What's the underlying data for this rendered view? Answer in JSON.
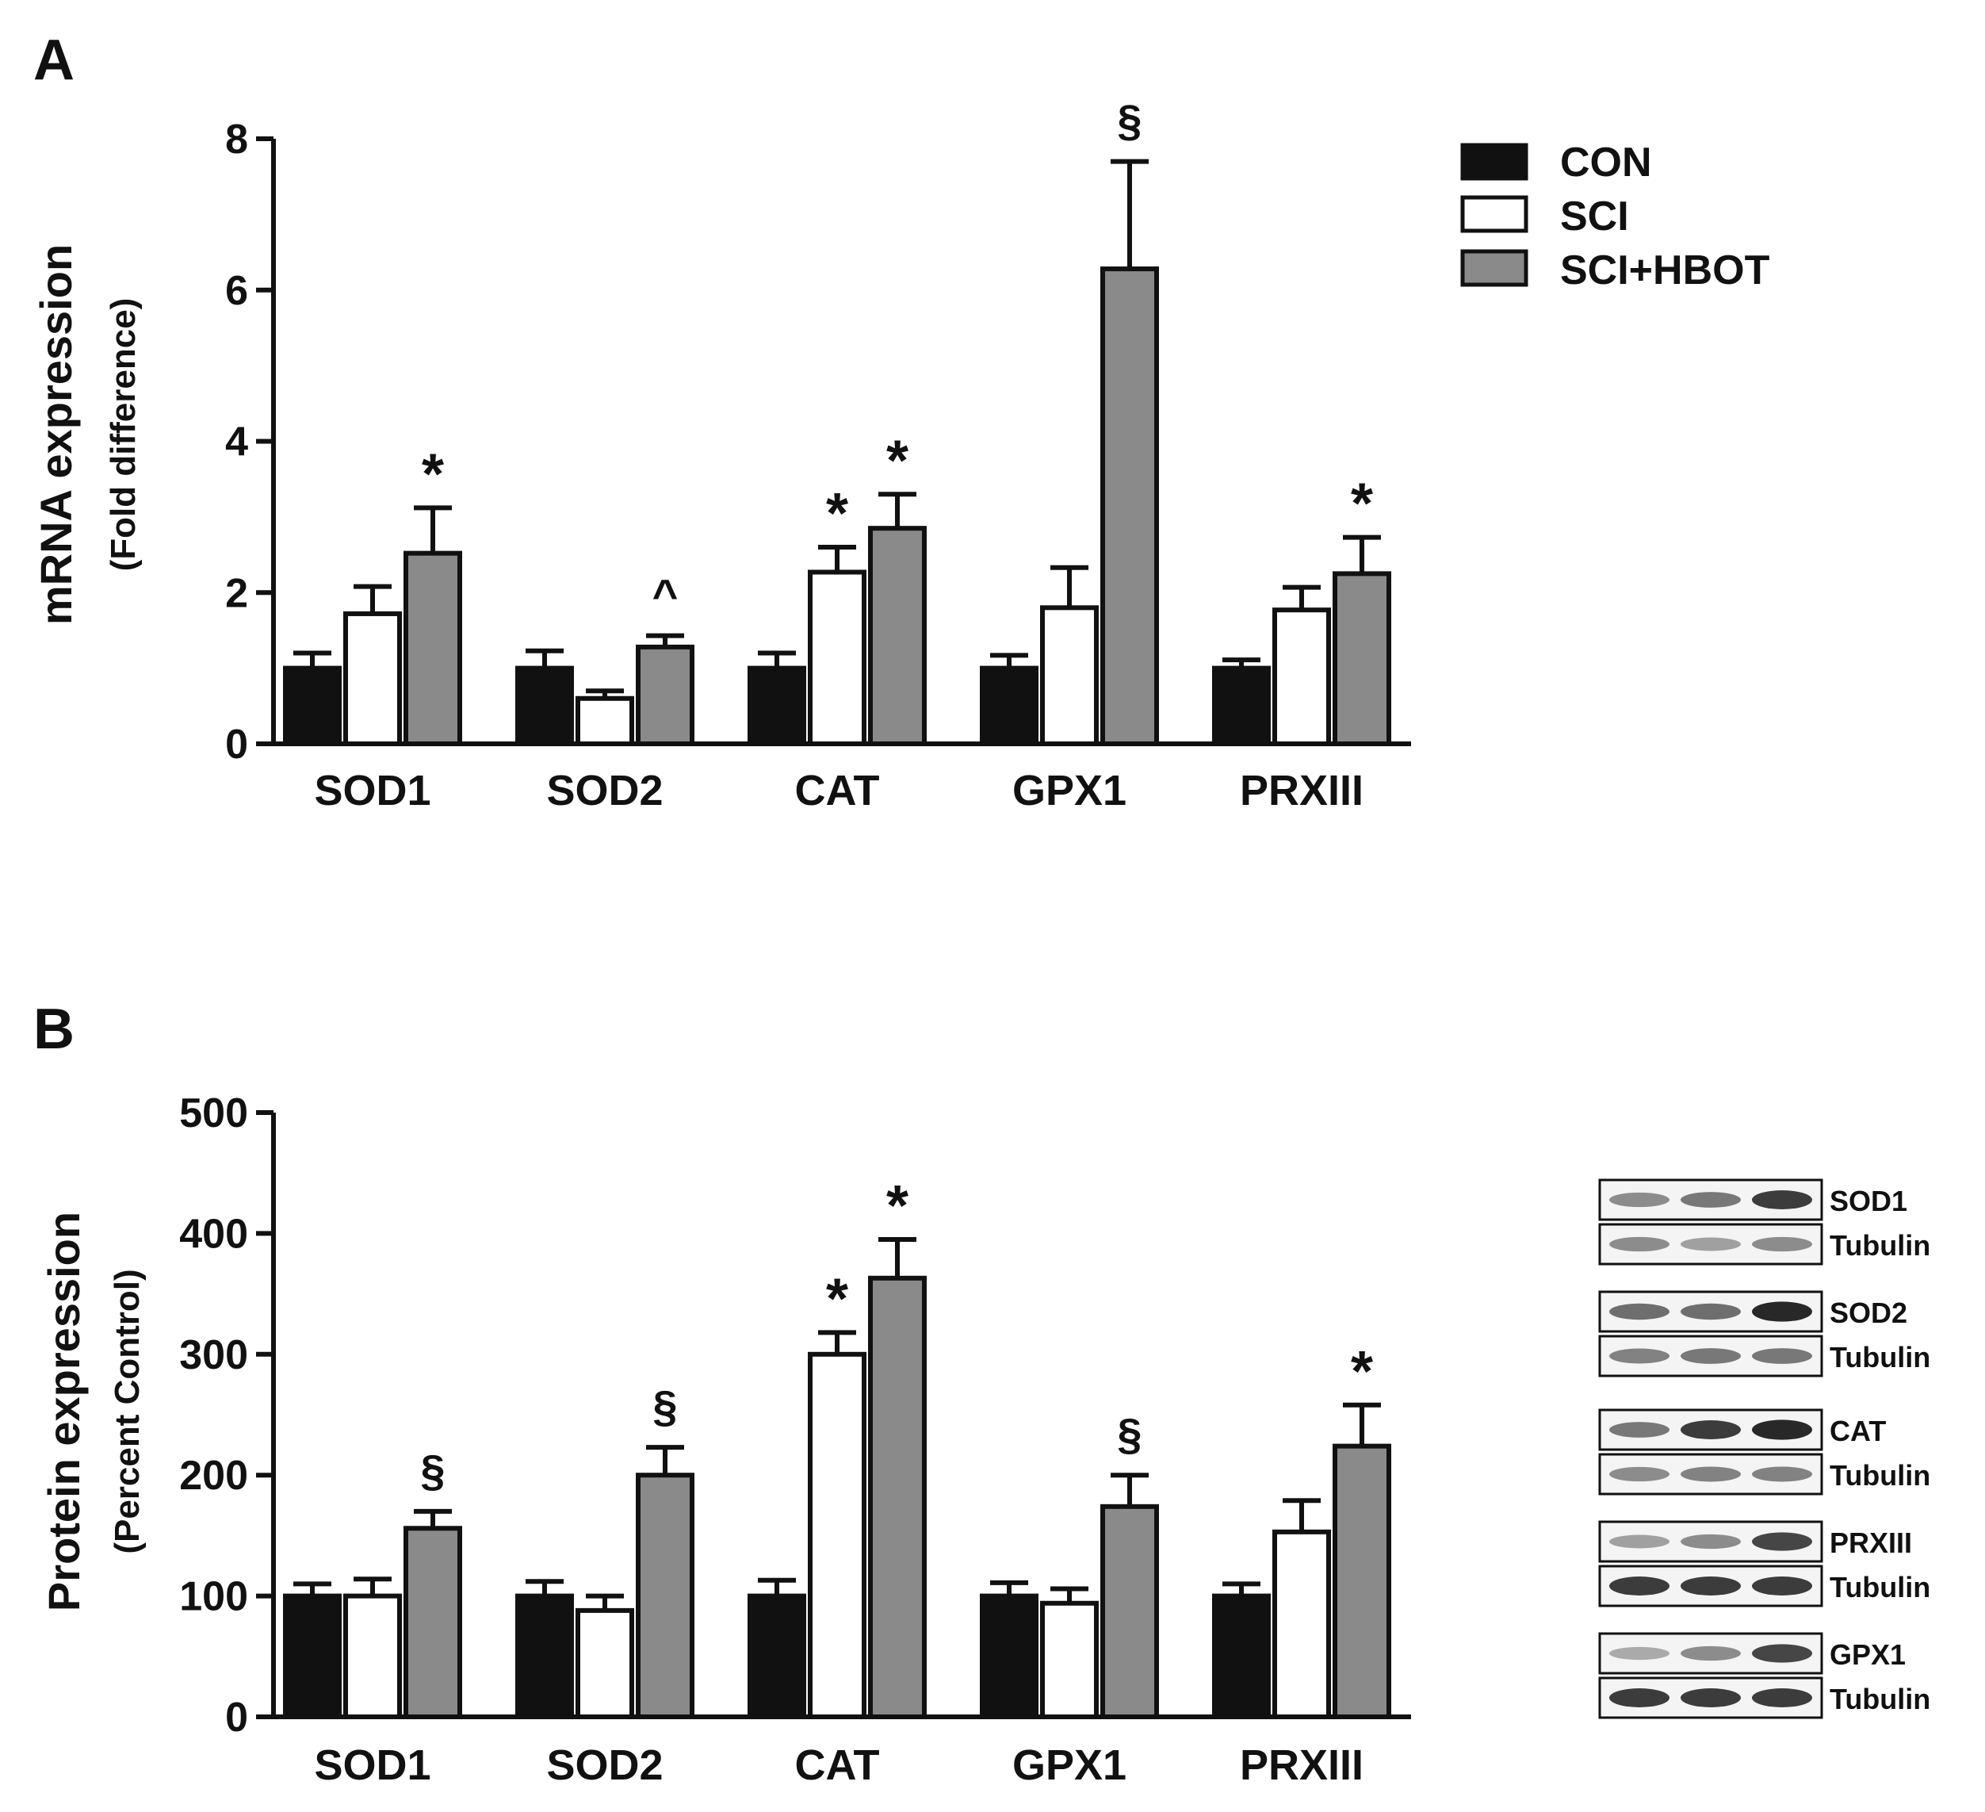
{
  "legend": [
    {
      "label": "CON",
      "color": "#111111"
    },
    {
      "label": "SCI",
      "color": "#ffffff"
    },
    {
      "label": "SCI+HBOT",
      "color": "#8a8a8a"
    }
  ],
  "chart_data": [
    {
      "panel": "A",
      "type": "bar",
      "ylabel": "mRNA expression",
      "ylabel_sub": "(Fold difference)",
      "ylim": [
        0,
        8
      ],
      "yticks": [
        "0",
        "2",
        "4",
        "6",
        "8"
      ],
      "categories": [
        "SOD1",
        "SOD2",
        "CAT",
        "GPX1",
        "PRXIII"
      ],
      "series": [
        {
          "name": "CON",
          "values": [
            1.0,
            1.0,
            1.0,
            1.0,
            1.0
          ],
          "errors": [
            0.2,
            0.23,
            0.2,
            0.17,
            0.11
          ]
        },
        {
          "name": "SCI",
          "values": [
            1.72,
            0.6,
            2.27,
            1.8,
            1.77
          ],
          "errors": [
            0.36,
            0.1,
            0.33,
            0.53,
            0.3
          ]
        },
        {
          "name": "SCI+HBOT",
          "values": [
            2.52,
            1.28,
            2.85,
            6.28,
            2.25
          ],
          "errors": [
            0.6,
            0.15,
            0.45,
            1.42,
            0.48
          ]
        }
      ],
      "annotations": [
        {
          "category": 0,
          "series": 2,
          "text": "*"
        },
        {
          "category": 1,
          "series": 2,
          "text": "^"
        },
        {
          "category": 2,
          "series": 1,
          "text": "*"
        },
        {
          "category": 2,
          "series": 2,
          "text": "*"
        },
        {
          "category": 3,
          "series": 2,
          "text": "§"
        },
        {
          "category": 4,
          "series": 2,
          "text": "*"
        }
      ]
    },
    {
      "panel": "B",
      "type": "bar",
      "ylabel": "Protein expression",
      "ylabel_sub": "(Percent Control)",
      "ylim": [
        0,
        500
      ],
      "yticks": [
        "0",
        "100",
        "200",
        "300",
        "400",
        "500"
      ],
      "categories": [
        "SOD1",
        "SOD2",
        "CAT",
        "GPX1",
        "PRXIII"
      ],
      "series": [
        {
          "name": "CON",
          "values": [
            100,
            100,
            100,
            100,
            100
          ],
          "errors": [
            10,
            12,
            13,
            11,
            10
          ]
        },
        {
          "name": "SCI",
          "values": [
            100,
            88,
            300,
            94,
            153
          ],
          "errors": [
            14,
            12,
            18,
            12,
            26
          ]
        },
        {
          "name": "SCI+HBOT",
          "values": [
            156,
            200,
            363,
            174,
            224
          ],
          "errors": [
            14,
            23,
            32,
            26,
            34
          ]
        }
      ],
      "annotations": [
        {
          "category": 0,
          "series": 2,
          "text": "§"
        },
        {
          "category": 1,
          "series": 2,
          "text": "§"
        },
        {
          "category": 2,
          "series": 1,
          "text": "*"
        },
        {
          "category": 2,
          "series": 2,
          "text": "*"
        },
        {
          "category": 3,
          "series": 2,
          "text": "§"
        },
        {
          "category": 4,
          "series": 2,
          "text": "*"
        }
      ]
    }
  ],
  "blots": [
    {
      "protein": "SOD1",
      "control": "Tubulin",
      "protein_bands": [
        0.45,
        0.55,
        0.85
      ],
      "control_bands": [
        0.45,
        0.35,
        0.45
      ]
    },
    {
      "protein": "SOD2",
      "control": "Tubulin",
      "protein_bands": [
        0.6,
        0.6,
        0.95
      ],
      "control_bands": [
        0.5,
        0.55,
        0.55
      ]
    },
    {
      "protein": "CAT",
      "control": "Tubulin",
      "protein_bands": [
        0.55,
        0.85,
        0.95
      ],
      "control_bands": [
        0.45,
        0.5,
        0.5
      ]
    },
    {
      "protein": "PRXIII",
      "control": "Tubulin",
      "protein_bands": [
        0.35,
        0.45,
        0.8
      ],
      "control_bands": [
        0.85,
        0.85,
        0.85
      ]
    },
    {
      "protein": "GPX1",
      "control": "Tubulin",
      "protein_bands": [
        0.3,
        0.45,
        0.8
      ],
      "control_bands": [
        0.85,
        0.85,
        0.85
      ]
    }
  ]
}
